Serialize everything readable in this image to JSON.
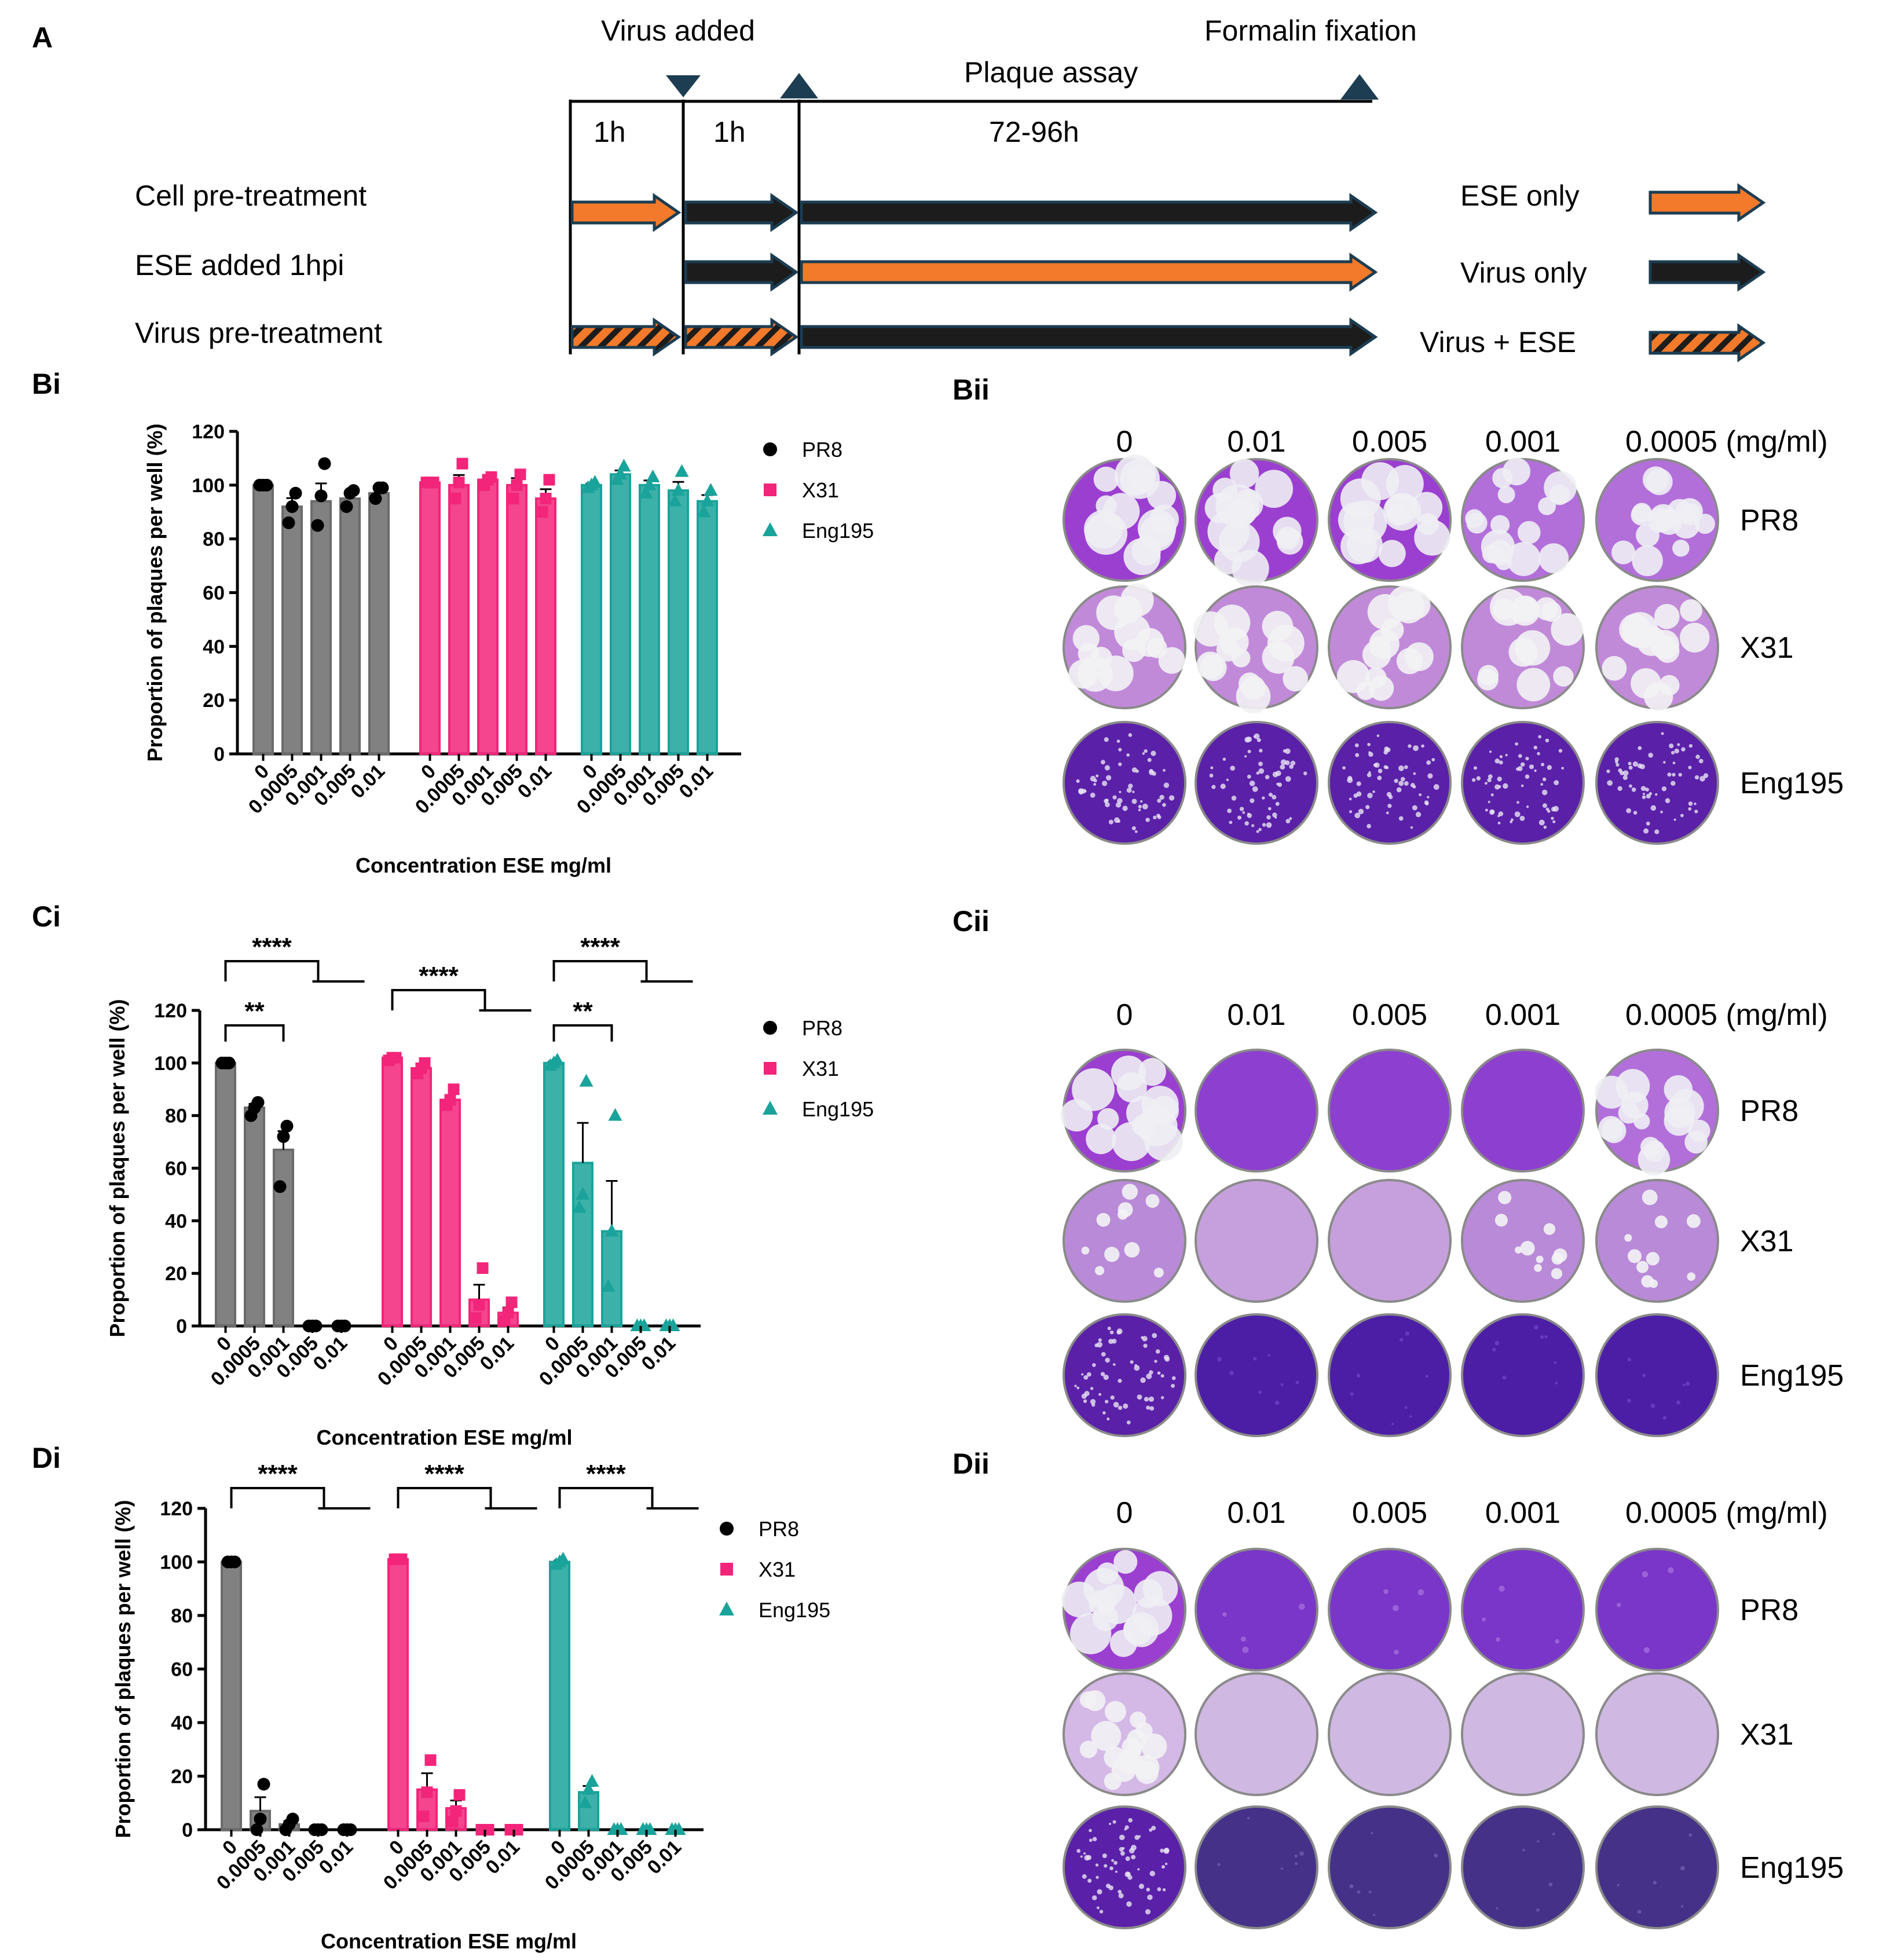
{
  "panels": {
    "A": "A",
    "Bi": "Bi",
    "Bii": "Bii",
    "Ci": "Ci",
    "Cii": "Cii",
    "Di": "Di",
    "Dii": "Dii"
  },
  "timeline": {
    "virus_added": "Virus added",
    "formalin": "Formalin fixation",
    "plaque_assay": "Plaque assay",
    "t1": "1h",
    "t2": "1h",
    "t3": "72-96h",
    "rows": [
      "Cell pre-treatment",
      "ESE added 1hpi",
      "Virus pre-treatment"
    ],
    "legend": [
      "ESE only",
      "Virus only",
      "Virus + ESE"
    ]
  },
  "colors": {
    "PR8": "#6b6b6b",
    "X31": "#f2257a",
    "Eng195": "#1aa39a",
    "ese": "#f27a2a",
    "virus": "#1c1c1c",
    "arrow_edge": "#1c3d52",
    "well": "#8a3fc9"
  },
  "wells": {
    "concentrations": [
      "0",
      "0.01",
      "0.005",
      "0.001",
      "0.0005 (mg/ml)"
    ],
    "viruses": [
      "PR8",
      "X31",
      "Eng195"
    ]
  },
  "chart_data": [
    {
      "id": "Bi",
      "type": "bar",
      "ylabel": "Proportion of plaques per well (%)",
      "xlabel": "Concentration ESE mg/ml",
      "ylim": [
        0,
        120
      ],
      "yticks": [
        0,
        20,
        40,
        60,
        80,
        100,
        120
      ],
      "categories": [
        "0",
        "0.0005",
        "0.001",
        "0.005",
        "0.01"
      ],
      "series": [
        {
          "name": "PR8",
          "values": [
            100,
            92,
            94,
            95,
            97
          ],
          "points": [
            [
              100,
              100,
              100
            ],
            [
              86,
              92,
              97
            ],
            [
              85,
              96,
              108
            ],
            [
              92,
              97,
              98
            ],
            [
              95,
              99,
              99
            ]
          ]
        },
        {
          "name": "X31",
          "values": [
            101,
            100,
            102,
            100,
            95
          ],
          "points": [
            [
              101,
              101,
              101
            ],
            [
              95,
              101,
              108
            ],
            [
              100,
              102,
              103
            ],
            [
              95,
              100,
              104
            ],
            [
              90,
              95,
              102
            ]
          ]
        },
        {
          "name": "Eng195",
          "values": [
            100,
            104,
            100,
            98,
            94
          ],
          "points": [
            [
              99,
              100,
              101
            ],
            [
              102,
              104,
              107
            ],
            [
              97,
              100,
              103
            ],
            [
              94,
              98,
              105
            ],
            [
              90,
              94,
              98
            ]
          ]
        }
      ],
      "significance": []
    },
    {
      "id": "Ci",
      "type": "bar",
      "ylabel": "Proportion of plaques per well (%)",
      "xlabel": "Concentration ESE mg/ml",
      "ylim": [
        0,
        120
      ],
      "yticks": [
        0,
        20,
        40,
        60,
        80,
        100,
        120
      ],
      "categories": [
        "0",
        "0.0005",
        "0.001",
        "0.005",
        "0.01"
      ],
      "series": [
        {
          "name": "PR8",
          "values": [
            100,
            83,
            67,
            0,
            0
          ],
          "points": [
            [
              100,
              100,
              100
            ],
            [
              80,
              83,
              85
            ],
            [
              53,
              72,
              76
            ],
            [
              0,
              0,
              0
            ],
            [
              0,
              0,
              0
            ]
          ]
        },
        {
          "name": "X31",
          "values": [
            102,
            98,
            86,
            10,
            5
          ],
          "points": [
            [
              101,
              102,
              102
            ],
            [
              96,
              98,
              100
            ],
            [
              84,
              86,
              90
            ],
            [
              3,
              8,
              22
            ],
            [
              2,
              5,
              9
            ]
          ]
        },
        {
          "name": "Eng195",
          "values": [
            100,
            62,
            36,
            0,
            0
          ],
          "points": [
            [
              99,
              100,
              101
            ],
            [
              45,
              50,
              93
            ],
            [
              15,
              36,
              80
            ],
            [
              0,
              0,
              0
            ],
            [
              0,
              0,
              0
            ]
          ]
        }
      ],
      "significance": [
        {
          "series": "PR8",
          "label": "****"
        },
        {
          "series": "PR8",
          "label": "**"
        },
        {
          "series": "X31",
          "label": "****"
        },
        {
          "series": "Eng195",
          "label": "****"
        },
        {
          "series": "Eng195",
          "label": "**"
        }
      ]
    },
    {
      "id": "Di",
      "type": "bar",
      "ylabel": "Proportion of plaques per well (%)",
      "xlabel": "Concentration ESE mg/ml",
      "ylim": [
        0,
        120
      ],
      "yticks": [
        0,
        20,
        40,
        60,
        80,
        100,
        120
      ],
      "categories": [
        "0",
        "0.0005",
        "0.001",
        "0.005",
        "0.01"
      ],
      "series": [
        {
          "name": "PR8",
          "values": [
            100,
            7,
            2,
            0,
            0
          ],
          "points": [
            [
              100,
              100,
              100
            ],
            [
              0,
              4,
              17
            ],
            [
              0,
              2,
              4
            ],
            [
              0,
              0,
              0
            ],
            [
              0,
              0,
              0
            ]
          ]
        },
        {
          "name": "X31",
          "values": [
            101,
            15,
            8,
            0,
            0
          ],
          "points": [
            [
              101,
              101,
              101
            ],
            [
              5,
              14,
              26
            ],
            [
              3,
              7,
              13
            ],
            [
              0,
              0,
              0
            ],
            [
              0,
              0,
              0
            ]
          ]
        },
        {
          "name": "Eng195",
          "values": [
            100,
            14,
            0,
            0,
            0
          ],
          "points": [
            [
              99,
              100,
              101
            ],
            [
              10,
              15,
              18
            ],
            [
              0,
              0,
              0
            ],
            [
              0,
              0,
              0
            ],
            [
              0,
              0,
              0
            ]
          ]
        }
      ],
      "significance": [
        {
          "series": "PR8",
          "label": "****"
        },
        {
          "series": "X31",
          "label": "****"
        },
        {
          "series": "Eng195",
          "label": "****"
        }
      ]
    }
  ]
}
